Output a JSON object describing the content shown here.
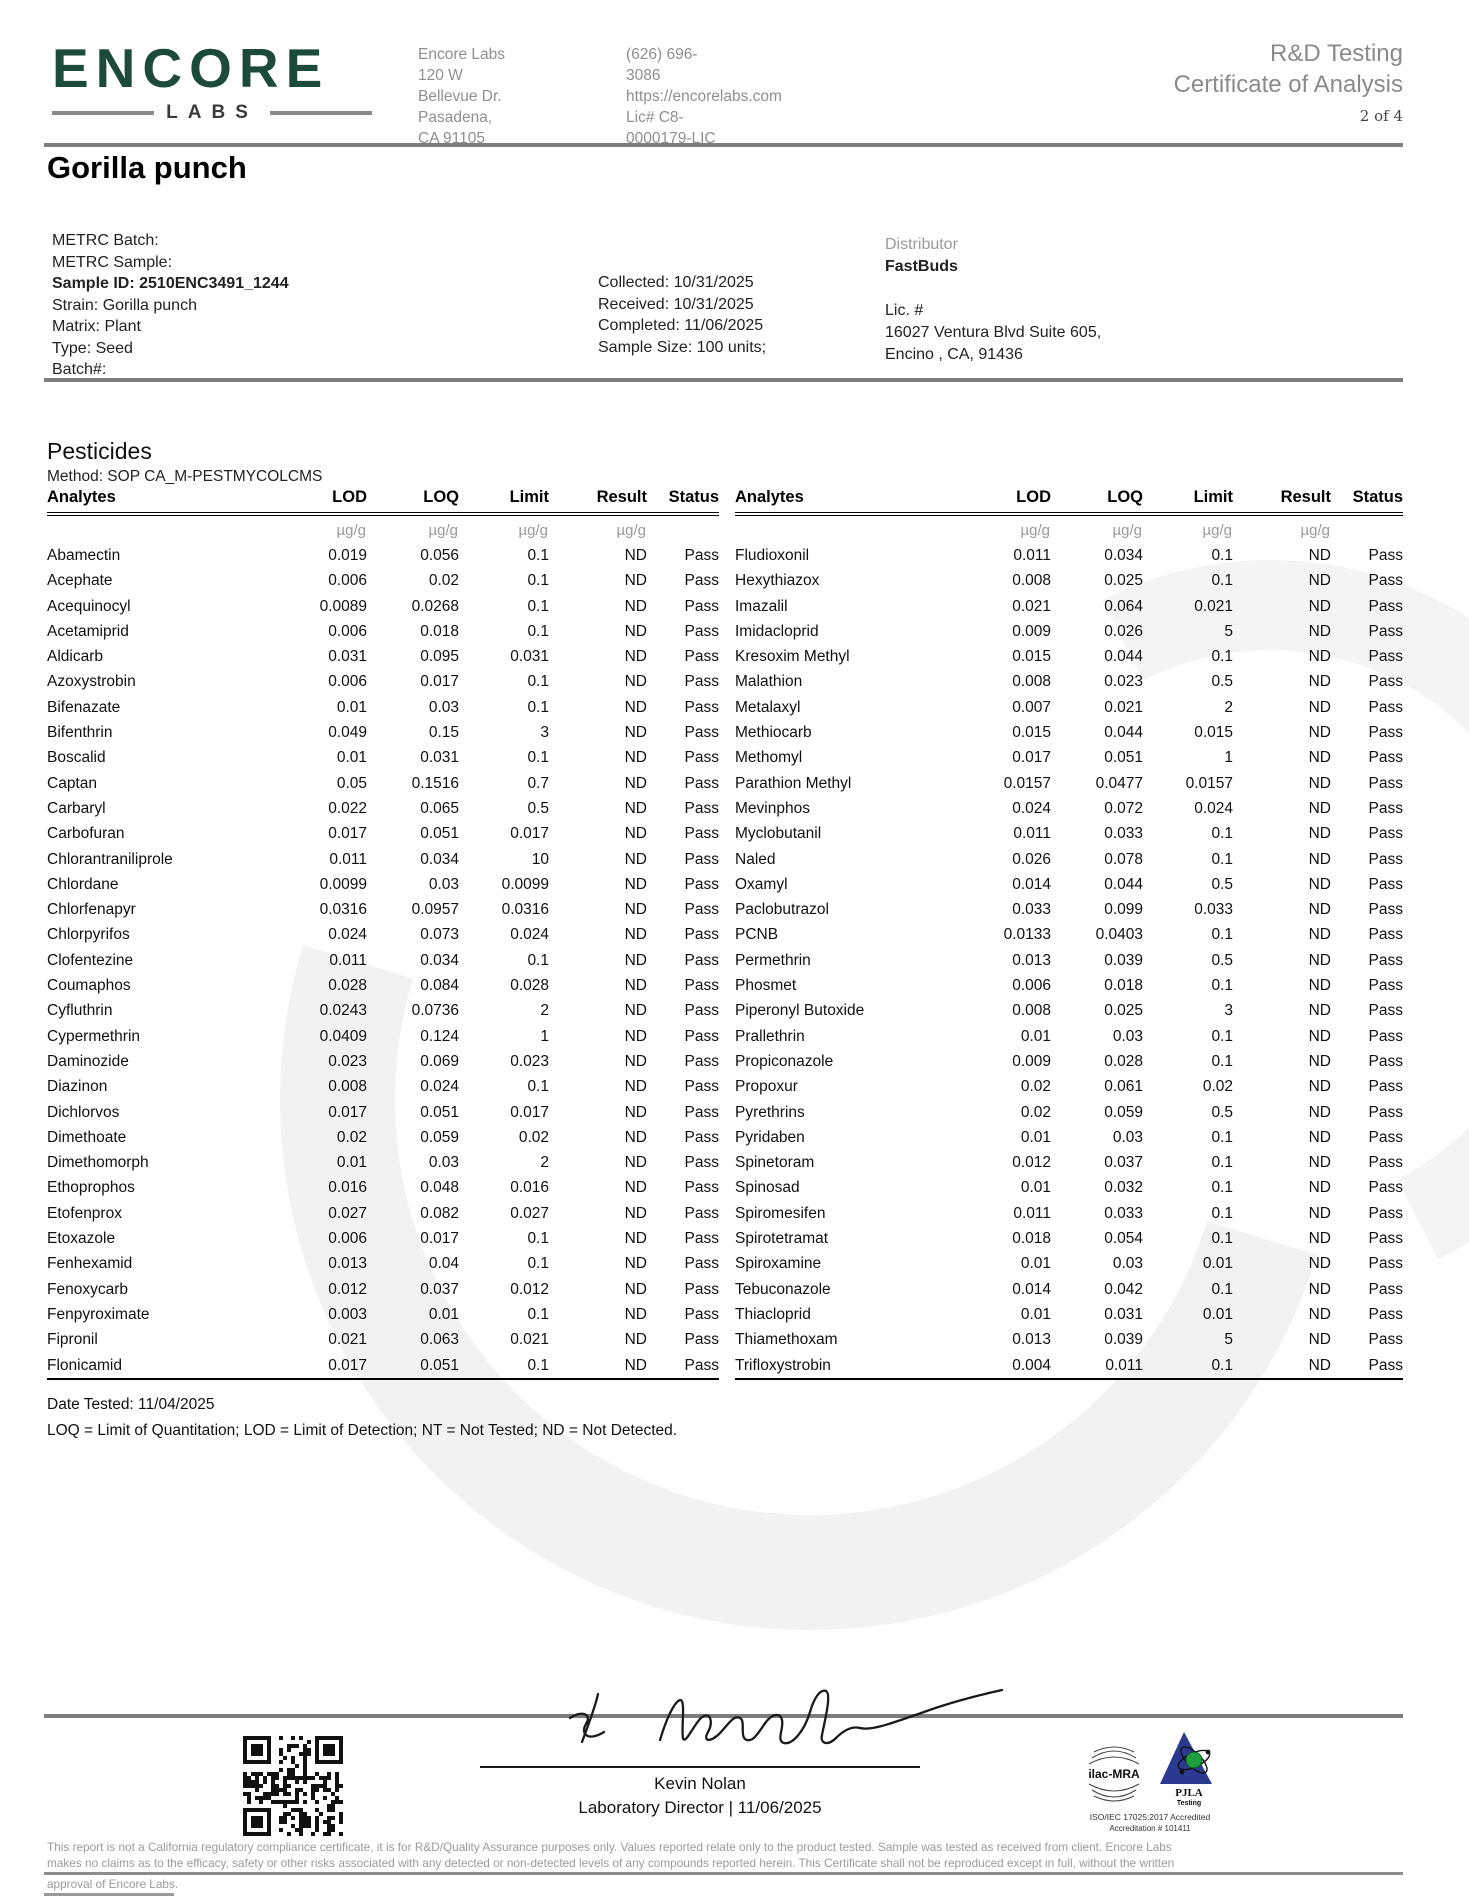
{
  "colors": {
    "brand_green": "#1d4b3a",
    "rule_gray": "#7d7d7d",
    "muted_text": "#8f8f8f"
  },
  "header": {
    "logo_text": "ENCORE",
    "logo_sub": "LABS",
    "lab_name": "Encore Labs",
    "address_line1": "120 W Bellevue Dr.",
    "address_line2": "Pasadena, CA 91105",
    "phone": "(626) 696-3086",
    "website": "https://encorelabs.com",
    "license": "Lic# C8-0000179-LIC",
    "report_type": "R&D Testing",
    "report_title": "Certificate of Analysis",
    "page_indicator": "2 of 4"
  },
  "sample": {
    "title": "Gorilla punch",
    "left_lines": [
      "METRC Batch:",
      "METRC Sample:",
      "Sample ID: 2510ENC3491_1244",
      "Strain: Gorilla punch",
      "Matrix: Plant",
      "Type: Seed",
      "Batch#:"
    ],
    "mid_lines": [
      "Collected: 10/31/2025",
      "Received: 10/31/2025",
      "Completed: 11/06/2025",
      "Sample Size: 100 units;"
    ],
    "distributor_label": "Distributor",
    "distributor_name": "FastBuds",
    "distributor_lines": [
      "Lic. #",
      "16027 Ventura Blvd Suite 605,",
      "Encino , CA, 91436"
    ]
  },
  "pesticides": {
    "section_title": "Pesticides",
    "method": "Method: SOP CA_M-PESTMYCOLCMS",
    "columns": [
      "Analytes",
      "LOD",
      "LOQ",
      "Limit",
      "Result",
      "Status"
    ],
    "units": [
      "",
      "µg/g",
      "µg/g",
      "µg/g",
      "µg/g",
      ""
    ],
    "left_rows": [
      [
        "Abamectin",
        "0.019",
        "0.056",
        "0.1",
        "ND",
        "Pass"
      ],
      [
        "Acephate",
        "0.006",
        "0.02",
        "0.1",
        "ND",
        "Pass"
      ],
      [
        "Acequinocyl",
        "0.0089",
        "0.0268",
        "0.1",
        "ND",
        "Pass"
      ],
      [
        "Acetamiprid",
        "0.006",
        "0.018",
        "0.1",
        "ND",
        "Pass"
      ],
      [
        "Aldicarb",
        "0.031",
        "0.095",
        "0.031",
        "ND",
        "Pass"
      ],
      [
        "Azoxystrobin",
        "0.006",
        "0.017",
        "0.1",
        "ND",
        "Pass"
      ],
      [
        "Bifenazate",
        "0.01",
        "0.03",
        "0.1",
        "ND",
        "Pass"
      ],
      [
        "Bifenthrin",
        "0.049",
        "0.15",
        "3",
        "ND",
        "Pass"
      ],
      [
        "Boscalid",
        "0.01",
        "0.031",
        "0.1",
        "ND",
        "Pass"
      ],
      [
        "Captan",
        "0.05",
        "0.1516",
        "0.7",
        "ND",
        "Pass"
      ],
      [
        "Carbaryl",
        "0.022",
        "0.065",
        "0.5",
        "ND",
        "Pass"
      ],
      [
        "Carbofuran",
        "0.017",
        "0.051",
        "0.017",
        "ND",
        "Pass"
      ],
      [
        "Chlorantraniliprole",
        "0.011",
        "0.034",
        "10",
        "ND",
        "Pass"
      ],
      [
        "Chlordane",
        "0.0099",
        "0.03",
        "0.0099",
        "ND",
        "Pass"
      ],
      [
        "Chlorfenapyr",
        "0.0316",
        "0.0957",
        "0.0316",
        "ND",
        "Pass"
      ],
      [
        "Chlorpyrifos",
        "0.024",
        "0.073",
        "0.024",
        "ND",
        "Pass"
      ],
      [
        "Clofentezine",
        "0.011",
        "0.034",
        "0.1",
        "ND",
        "Pass"
      ],
      [
        "Coumaphos",
        "0.028",
        "0.084",
        "0.028",
        "ND",
        "Pass"
      ],
      [
        "Cyfluthrin",
        "0.0243",
        "0.0736",
        "2",
        "ND",
        "Pass"
      ],
      [
        "Cypermethrin",
        "0.0409",
        "0.124",
        "1",
        "ND",
        "Pass"
      ],
      [
        "Daminozide",
        "0.023",
        "0.069",
        "0.023",
        "ND",
        "Pass"
      ],
      [
        "Diazinon",
        "0.008",
        "0.024",
        "0.1",
        "ND",
        "Pass"
      ],
      [
        "Dichlorvos",
        "0.017",
        "0.051",
        "0.017",
        "ND",
        "Pass"
      ],
      [
        "Dimethoate",
        "0.02",
        "0.059",
        "0.02",
        "ND",
        "Pass"
      ],
      [
        "Dimethomorph",
        "0.01",
        "0.03",
        "2",
        "ND",
        "Pass"
      ],
      [
        "Ethoprophos",
        "0.016",
        "0.048",
        "0.016",
        "ND",
        "Pass"
      ],
      [
        "Etofenprox",
        "0.027",
        "0.082",
        "0.027",
        "ND",
        "Pass"
      ],
      [
        "Etoxazole",
        "0.006",
        "0.017",
        "0.1",
        "ND",
        "Pass"
      ],
      [
        "Fenhexamid",
        "0.013",
        "0.04",
        "0.1",
        "ND",
        "Pass"
      ],
      [
        "Fenoxycarb",
        "0.012",
        "0.037",
        "0.012",
        "ND",
        "Pass"
      ],
      [
        "Fenpyroximate",
        "0.003",
        "0.01",
        "0.1",
        "ND",
        "Pass"
      ],
      [
        "Fipronil",
        "0.021",
        "0.063",
        "0.021",
        "ND",
        "Pass"
      ],
      [
        "Flonicamid",
        "0.017",
        "0.051",
        "0.1",
        "ND",
        "Pass"
      ]
    ],
    "right_rows": [
      [
        "Fludioxonil",
        "0.011",
        "0.034",
        "0.1",
        "ND",
        "Pass"
      ],
      [
        "Hexythiazox",
        "0.008",
        "0.025",
        "0.1",
        "ND",
        "Pass"
      ],
      [
        "Imazalil",
        "0.021",
        "0.064",
        "0.021",
        "ND",
        "Pass"
      ],
      [
        "Imidacloprid",
        "0.009",
        "0.026",
        "5",
        "ND",
        "Pass"
      ],
      [
        "Kresoxim Methyl",
        "0.015",
        "0.044",
        "0.1",
        "ND",
        "Pass"
      ],
      [
        "Malathion",
        "0.008",
        "0.023",
        "0.5",
        "ND",
        "Pass"
      ],
      [
        "Metalaxyl",
        "0.007",
        "0.021",
        "2",
        "ND",
        "Pass"
      ],
      [
        "Methiocarb",
        "0.015",
        "0.044",
        "0.015",
        "ND",
        "Pass"
      ],
      [
        "Methomyl",
        "0.017",
        "0.051",
        "1",
        "ND",
        "Pass"
      ],
      [
        "Parathion Methyl",
        "0.0157",
        "0.0477",
        "0.0157",
        "ND",
        "Pass"
      ],
      [
        "Mevinphos",
        "0.024",
        "0.072",
        "0.024",
        "ND",
        "Pass"
      ],
      [
        "Myclobutanil",
        "0.011",
        "0.033",
        "0.1",
        "ND",
        "Pass"
      ],
      [
        "Naled",
        "0.026",
        "0.078",
        "0.1",
        "ND",
        "Pass"
      ],
      [
        "Oxamyl",
        "0.014",
        "0.044",
        "0.5",
        "ND",
        "Pass"
      ],
      [
        "Paclobutrazol",
        "0.033",
        "0.099",
        "0.033",
        "ND",
        "Pass"
      ],
      [
        "PCNB",
        "0.0133",
        "0.0403",
        "0.1",
        "ND",
        "Pass"
      ],
      [
        "Permethrin",
        "0.013",
        "0.039",
        "0.5",
        "ND",
        "Pass"
      ],
      [
        "Phosmet",
        "0.006",
        "0.018",
        "0.1",
        "ND",
        "Pass"
      ],
      [
        "Piperonyl Butoxide",
        "0.008",
        "0.025",
        "3",
        "ND",
        "Pass"
      ],
      [
        "Prallethrin",
        "0.01",
        "0.03",
        "0.1",
        "ND",
        "Pass"
      ],
      [
        "Propiconazole",
        "0.009",
        "0.028",
        "0.1",
        "ND",
        "Pass"
      ],
      [
        "Propoxur",
        "0.02",
        "0.061",
        "0.02",
        "ND",
        "Pass"
      ],
      [
        "Pyrethrins",
        "0.02",
        "0.059",
        "0.5",
        "ND",
        "Pass"
      ],
      [
        "Pyridaben",
        "0.01",
        "0.03",
        "0.1",
        "ND",
        "Pass"
      ],
      [
        "Spinetoram",
        "0.012",
        "0.037",
        "0.1",
        "ND",
        "Pass"
      ],
      [
        "Spinosad",
        "0.01",
        "0.032",
        "0.1",
        "ND",
        "Pass"
      ],
      [
        "Spiromesifen",
        "0.011",
        "0.033",
        "0.1",
        "ND",
        "Pass"
      ],
      [
        "Spirotetramat",
        "0.018",
        "0.054",
        "0.1",
        "ND",
        "Pass"
      ],
      [
        "Spiroxamine",
        "0.01",
        "0.03",
        "0.01",
        "ND",
        "Pass"
      ],
      [
        "Tebuconazole",
        "0.014",
        "0.042",
        "0.1",
        "ND",
        "Pass"
      ],
      [
        "Thiacloprid",
        "0.01",
        "0.031",
        "0.01",
        "ND",
        "Pass"
      ],
      [
        "Thiamethoxam",
        "0.013",
        "0.039",
        "5",
        "ND",
        "Pass"
      ],
      [
        "Trifloxystrobin",
        "0.004",
        "0.011",
        "0.1",
        "ND",
        "Pass"
      ]
    ],
    "date_tested": "Date Tested: 11/04/2025",
    "legend": "LOQ = Limit of Quantitation; LOD = Limit of Detection; NT = Not Tested; ND = Not Detected."
  },
  "footer": {
    "signer_name": "Kevin Nolan",
    "signer_title": "Laboratory Director | 11/06/2025",
    "ilac_label": "ilac-MRA",
    "pjla_label": "PJLA",
    "pjla_sub": "Testing",
    "accreditation_line1": "ISO/IEC 17025:2017 Accredited",
    "accreditation_line2": "Accreditation # 101411",
    "disclaimer_lines": [
      "This report is not a California regulatory compliance certificate, it is for R&D/Quality Assurance purposes only. Values reported relate only to the product tested. Sample was tested as received from client. Encore Labs",
      "makes no claims as to the efficacy, safety or other risks associated with any detected or non-detected levels of any compounds reported herein. This Certificate shall not be reproduced except in full, without the written",
      "approval of Encore Labs."
    ]
  }
}
